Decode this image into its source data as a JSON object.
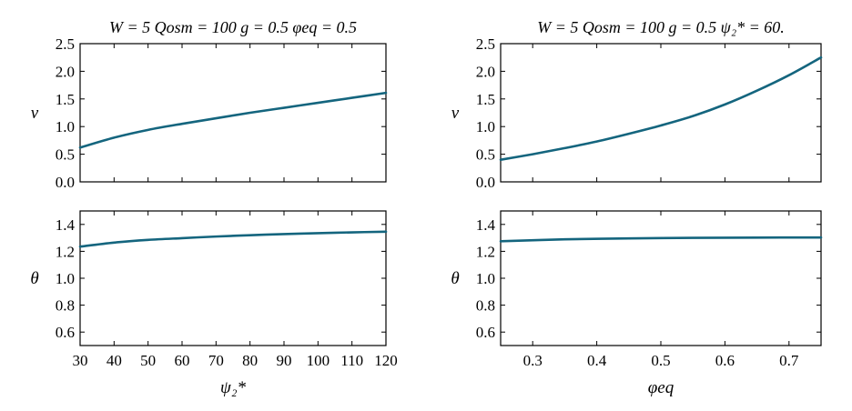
{
  "chart_data": [
    {
      "id": "top-left",
      "type": "line",
      "title": "W = 5 Qosm = 100 g = 0.5 φeq = 0.5",
      "xlabel": "",
      "ylabel": "ν",
      "xlim": [
        30,
        120
      ],
      "ylim": [
        0,
        2.5
      ],
      "x_ticks": [
        30,
        40,
        50,
        60,
        70,
        80,
        90,
        100,
        110,
        120
      ],
      "x_tick_labels_shown": false,
      "y_ticks": [
        0.0,
        0.5,
        1.0,
        1.5,
        2.0,
        2.5
      ],
      "y_tick_labels": [
        "0.0",
        "0.5",
        "1.0",
        "1.5",
        "2.0",
        "2.5"
      ],
      "series": [
        {
          "name": "ν",
          "x": [
            30,
            40,
            50,
            60,
            70,
            80,
            90,
            100,
            110,
            120
          ],
          "y": [
            0.62,
            0.8,
            0.94,
            1.05,
            1.15,
            1.25,
            1.34,
            1.43,
            1.52,
            1.61
          ]
        }
      ]
    },
    {
      "id": "bottom-left",
      "type": "line",
      "title": "",
      "xlabel": "ψ₂*",
      "ylabel": "θ",
      "xlim": [
        30,
        120
      ],
      "ylim": [
        0.5,
        1.5
      ],
      "x_ticks": [
        30,
        40,
        50,
        60,
        70,
        80,
        90,
        100,
        110,
        120
      ],
      "x_tick_labels": [
        "30",
        "40",
        "50",
        "60",
        "70",
        "80",
        "90",
        "100",
        "110",
        "120"
      ],
      "y_ticks": [
        0.6,
        0.8,
        1.0,
        1.2,
        1.4
      ],
      "y_tick_labels": [
        "0.6",
        "0.8",
        "1.0",
        "1.2",
        "1.4"
      ],
      "series": [
        {
          "name": "θ",
          "x": [
            30,
            40,
            50,
            60,
            70,
            80,
            90,
            100,
            110,
            120
          ],
          "y": [
            1.235,
            1.265,
            1.285,
            1.298,
            1.31,
            1.32,
            1.328,
            1.335,
            1.341,
            1.346
          ]
        }
      ]
    },
    {
      "id": "top-right",
      "type": "line",
      "title": "W = 5 Qosm = 100 g = 0.5 ψ₂* = 60.",
      "xlabel": "",
      "ylabel": "ν",
      "xlim": [
        0.25,
        0.75
      ],
      "ylim": [
        0,
        2.5
      ],
      "x_ticks": [
        0.3,
        0.4,
        0.5,
        0.6,
        0.7
      ],
      "x_tick_labels_shown": false,
      "y_ticks": [
        0.0,
        0.5,
        1.0,
        1.5,
        2.0,
        2.5
      ],
      "y_tick_labels": [
        "0.0",
        "0.5",
        "1.0",
        "1.5",
        "2.0",
        "2.5"
      ],
      "series": [
        {
          "name": "ν",
          "x": [
            0.25,
            0.3,
            0.35,
            0.4,
            0.45,
            0.5,
            0.55,
            0.6,
            0.65,
            0.7,
            0.75
          ],
          "y": [
            0.4,
            0.5,
            0.61,
            0.73,
            0.87,
            1.02,
            1.19,
            1.4,
            1.65,
            1.93,
            2.25
          ]
        }
      ]
    },
    {
      "id": "bottom-right",
      "type": "line",
      "title": "",
      "xlabel": "φeq",
      "ylabel": "θ",
      "xlim": [
        0.25,
        0.75
      ],
      "ylim": [
        0.5,
        1.5
      ],
      "x_ticks": [
        0.3,
        0.4,
        0.5,
        0.6,
        0.7
      ],
      "x_tick_labels": [
        "0.3",
        "0.4",
        "0.5",
        "0.6",
        "0.7"
      ],
      "y_ticks": [
        0.6,
        0.8,
        1.0,
        1.2,
        1.4
      ],
      "y_tick_labels": [
        "0.6",
        "0.8",
        "1.0",
        "1.2",
        "1.4"
      ],
      "series": [
        {
          "name": "θ",
          "x": [
            0.25,
            0.35,
            0.45,
            0.55,
            0.65,
            0.75
          ],
          "y": [
            1.275,
            1.289,
            1.296,
            1.3,
            1.302,
            1.303
          ]
        }
      ]
    }
  ],
  "colors": {
    "series": "#14657e",
    "axes": "#000000"
  }
}
